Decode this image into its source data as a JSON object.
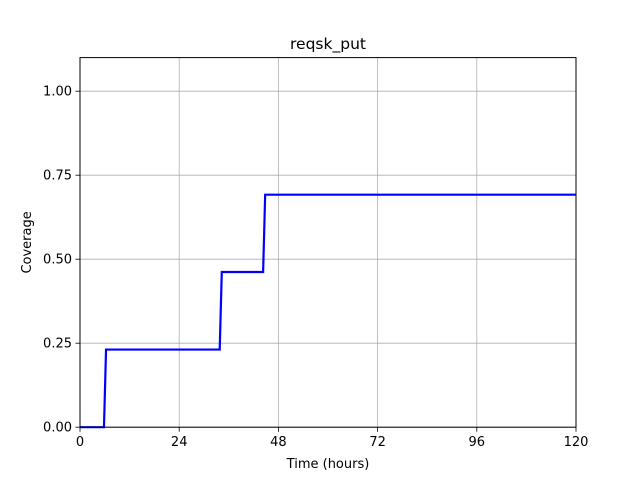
{
  "chart_data": {
    "type": "line",
    "title": "reqsk_put",
    "xlabel": "Time (hours)",
    "ylabel": "Coverage",
    "xlim": [
      0,
      120
    ],
    "ylim": [
      0,
      1.1
    ],
    "x_ticks": [
      0,
      24,
      48,
      72,
      96,
      120
    ],
    "x_tick_labels": [
      "0",
      "24",
      "48",
      "72",
      "96",
      "120"
    ],
    "y_ticks": [
      0,
      0.25,
      0.5,
      0.75,
      1.0
    ],
    "y_tick_labels": [
      "0.00",
      "0.25",
      "0.50",
      "0.75",
      "1.00"
    ],
    "grid": true,
    "series": [
      {
        "color": "#0000ff",
        "x": [
          0,
          5.8,
          6.3,
          33.8,
          34.3,
          44.3,
          44.8,
          120
        ],
        "y": [
          0,
          0,
          0.231,
          0.231,
          0.462,
          0.462,
          0.692,
          0.692
        ]
      }
    ]
  }
}
